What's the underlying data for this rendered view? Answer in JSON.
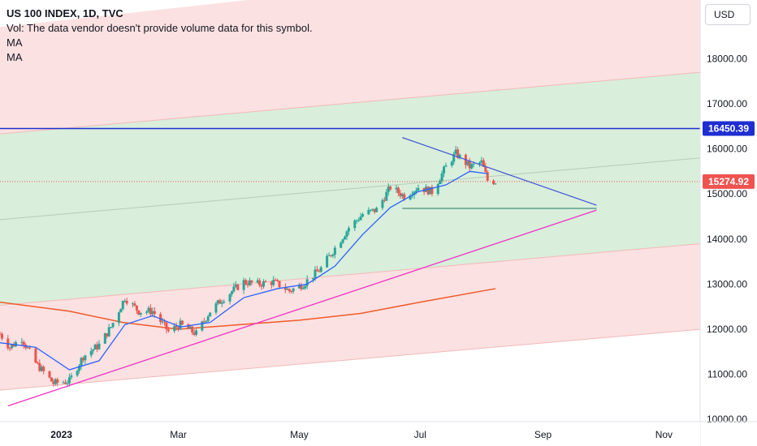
{
  "header": {
    "title": "US 100 INDEX, 1D, TVC",
    "vol_note": "Vol: The data vendor doesn't provide volume data for this symbol.",
    "indicators": [
      "MA",
      "MA"
    ]
  },
  "currency": "USD",
  "colors": {
    "up": "#26a69a",
    "down": "#ef5350",
    "ma_fast": "#2962ff",
    "ma_slow": "#f05a2a",
    "resistance": "#1e2ed1",
    "support": "#f032c8",
    "triangle": "#3f51d8",
    "level": "#1f7a6a",
    "channel_green": "#d9eedb",
    "channel_red": "#fbe1e1"
  },
  "price_labels": {
    "resistance": "16450.39",
    "last": "15274.92"
  },
  "chart_data": {
    "type": "candlestick",
    "title": "US 100 INDEX, 1D, TVC",
    "x_axis": {
      "labels": [
        "2023",
        "Mar",
        "May",
        "Jul",
        "Sep",
        "Nov"
      ],
      "range": [
        "2022-12-01",
        "2023-11-20"
      ]
    },
    "y_axis": {
      "labels": [
        "18000.00",
        "17000.00",
        "16000.00",
        "15000.00",
        "14000.00",
        "13000.00",
        "12000.00",
        "11000.00",
        "10000.00"
      ],
      "range": [
        9950,
        19300
      ]
    },
    "price_trend": [
      [
        "2022-12-01",
        11900
      ],
      [
        "2022-12-06",
        11600
      ],
      [
        "2022-12-12",
        11800
      ],
      [
        "2022-12-19",
        11250
      ],
      [
        "2022-12-28",
        10800
      ],
      [
        "2023-01-05",
        10850
      ],
      [
        "2023-01-12",
        11400
      ],
      [
        "2023-01-20",
        11650
      ],
      [
        "2023-01-26",
        12050
      ],
      [
        "2023-02-02",
        12700
      ],
      [
        "2023-02-09",
        12400
      ],
      [
        "2023-02-16",
        12400
      ],
      [
        "2023-02-24",
        11950
      ],
      [
        "2023-03-02",
        12100
      ],
      [
        "2023-03-10",
        11900
      ],
      [
        "2023-03-17",
        12400
      ],
      [
        "2023-03-24",
        12700
      ],
      [
        "2023-04-03",
        13050
      ],
      [
        "2023-04-10",
        13000
      ],
      [
        "2023-04-18",
        13050
      ],
      [
        "2023-04-26",
        12850
      ],
      [
        "2023-05-03",
        13000
      ],
      [
        "2023-05-12",
        13350
      ],
      [
        "2023-05-19",
        13800
      ],
      [
        "2023-05-26",
        14250
      ],
      [
        "2023-06-02",
        14550
      ],
      [
        "2023-06-09",
        14650
      ],
      [
        "2023-06-16",
        15150
      ],
      [
        "2023-06-23",
        14950
      ],
      [
        "2023-06-30",
        15150
      ],
      [
        "2023-07-07",
        15050
      ],
      [
        "2023-07-14",
        15600
      ],
      [
        "2023-07-19",
        15900
      ],
      [
        "2023-07-26",
        15600
      ],
      [
        "2023-08-01",
        15700
      ],
      [
        "2023-08-04",
        15300
      ],
      [
        "2023-08-08",
        15275
      ]
    ],
    "ma_fast": [
      [
        "2022-12-01",
        11700
      ],
      [
        "2022-12-19",
        11600
      ],
      [
        "2023-01-05",
        11100
      ],
      [
        "2023-01-20",
        11300
      ],
      [
        "2023-02-02",
        12100
      ],
      [
        "2023-02-16",
        12300
      ],
      [
        "2023-03-02",
        12050
      ],
      [
        "2023-03-17",
        12150
      ],
      [
        "2023-04-03",
        12700
      ],
      [
        "2023-04-20",
        12900
      ],
      [
        "2023-05-05",
        13000
      ],
      [
        "2023-05-19",
        13400
      ],
      [
        "2023-06-02",
        14100
      ],
      [
        "2023-06-16",
        14700
      ],
      [
        "2023-06-30",
        15050
      ],
      [
        "2023-07-14",
        15200
      ],
      [
        "2023-07-26",
        15500
      ],
      [
        "2023-08-04",
        15450
      ]
    ],
    "ma_slow": [
      [
        "2022-12-01",
        12600
      ],
      [
        "2023-01-05",
        12400
      ],
      [
        "2023-02-01",
        12150
      ],
      [
        "2023-03-01",
        12000
      ],
      [
        "2023-04-01",
        12100
      ],
      [
        "2023-05-01",
        12200
      ],
      [
        "2023-06-01",
        12350
      ],
      [
        "2023-07-01",
        12600
      ],
      [
        "2023-08-08",
        12900
      ]
    ],
    "drawings": {
      "resistance_level": 16450.39,
      "last_price": 15274.92,
      "horizontal_level": {
        "from": "2023-06-22",
        "to": "2023-09-28",
        "value": 14680
      },
      "triangle_upper": {
        "from": [
          "2023-06-22",
          16250
        ],
        "to": [
          "2023-09-28",
          14750
        ]
      },
      "support_trend": {
        "from": [
          "2022-12-01",
          10300
        ],
        "to": [
          "2023-09-28",
          14640
        ]
      },
      "channel": {
        "red_top": {
          "from": [
            "2022-12-01",
            18700
          ],
          "to": [
            "2023-11-20",
            20400
          ]
        },
        "green_top": {
          "from": [
            "2022-12-01",
            16330
          ],
          "to": [
            "2023-11-20",
            17700
          ]
        },
        "mid": {
          "from": [
            "2022-12-01",
            14430
          ],
          "to": [
            "2023-11-20",
            15800
          ]
        },
        "green_bottom": {
          "from": [
            "2022-12-01",
            12530
          ],
          "to": [
            "2023-11-20",
            13900
          ]
        },
        "red_bottom": {
          "from": [
            "2022-12-01",
            10650
          ],
          "to": [
            "2023-11-20",
            12000
          ]
        }
      }
    }
  }
}
